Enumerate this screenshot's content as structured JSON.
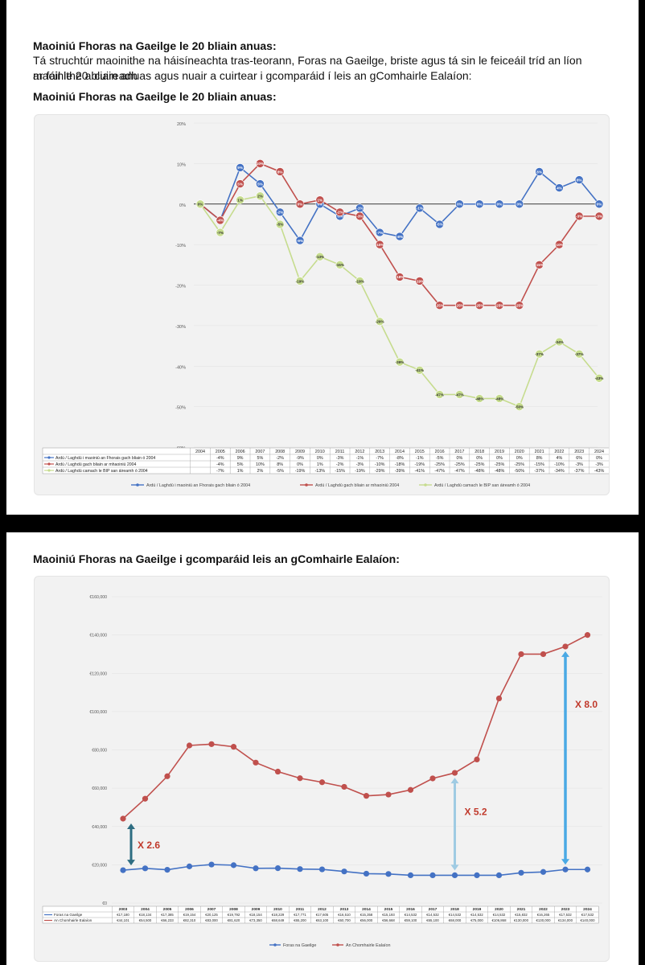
{
  "page1": {
    "heading": "Maoiniú Fhoras na Gaeilge le 20 bliain anuas:",
    "para_line1": "Tá struchtúr maoinithe na háisíneachta tras-teorann, Foras na Gaeilge, briste agus tá sin le feiceáil tríd an líon maoinithe a cuireadh",
    "para_line2": "ar fáil le 20 bliain anuas agus nuair a cuirtear i gcomparáid í leis an gComhairle Ealaíon:",
    "subheading": "Maoiniú Fhoras na Gaeilge le 20 bliain anuas:"
  },
  "page2": {
    "heading": "Maoiniú Fhoras na Gaeilge i gcomparáid leis an gComhairle Ealaíon:"
  },
  "colors": {
    "blue": "#4472c4",
    "red": "#c0504d",
    "green": "#c6dc8e",
    "arrow_dark": "#2e6d82",
    "arrow_light": "#9fcbe3",
    "arrow_bright": "#4aa9e4",
    "annot_red": "#c0392b"
  },
  "chart_data": [
    {
      "type": "line",
      "title": "",
      "ylim": [
        -60,
        20
      ],
      "y_ticks": [
        "20%",
        "10%",
        "0%",
        "-10%",
        "-20%",
        "-30%",
        "-40%",
        "-50%",
        "-60%"
      ],
      "y_tick_values": [
        20,
        10,
        0,
        -10,
        -20,
        -30,
        -40,
        -50,
        -60
      ],
      "categories": [
        "2004",
        "2005",
        "2006",
        "2007",
        "2008",
        "2009",
        "2010",
        "2011",
        "2012",
        "2013",
        "2014",
        "2015",
        "2016",
        "2017",
        "2018",
        "2019",
        "2020",
        "2021",
        "2022",
        "2023",
        "2024"
      ],
      "series": [
        {
          "name": "Ardú / Laghdú i maoiniú an Fhorais gach bliain ó 2004",
          "values": [
            0,
            -4,
            9,
            5,
            -2,
            -9,
            0,
            -3,
            -1,
            -7,
            -8,
            -1,
            -5,
            0,
            0,
            0,
            0,
            8,
            4,
            6,
            0
          ],
          "labels": [
            "0%",
            "-4%",
            "9%",
            "5%",
            "-2%",
            "-9%",
            "0%",
            "-3%",
            "-1%",
            "-7%",
            "-8%",
            "-1%",
            "-5%",
            "0%",
            "0%",
            "0%",
            "0%",
            "8%",
            "4%",
            "6%",
            "0%"
          ],
          "table_values": [
            "",
            "-4%",
            "9%",
            "5%",
            "-2%",
            "-9%",
            "0%",
            "-3%",
            "-1%",
            "-7%",
            "-8%",
            "-1%",
            "-5%",
            "0%",
            "0%",
            "0%",
            "0%",
            "8%",
            "4%",
            "6%",
            "0%"
          ]
        },
        {
          "name": "Ardú / Laghdú gach bliain ar mhaoiniú 2004",
          "values": [
            0,
            -4,
            5,
            10,
            8,
            0,
            1,
            -2,
            -3,
            -10,
            -18,
            -19,
            -25,
            -25,
            -25,
            -25,
            -25,
            -15,
            -10,
            -3,
            -3
          ],
          "labels": [
            "0%",
            "-4%",
            "5%",
            "10%",
            "8%",
            "0%",
            "1%",
            "-2%",
            "-3%",
            "-10%",
            "-18%",
            "-19%",
            "-25%",
            "-25%",
            "-25%",
            "-25%",
            "-25%",
            "-15%",
            "-10%",
            "-3%",
            "-3%"
          ],
          "table_values": [
            "",
            "-4%",
            "5%",
            "10%",
            "8%",
            "0%",
            "1%",
            "-2%",
            "-3%",
            "-10%",
            "-18%",
            "-19%",
            "-25%",
            "-25%",
            "-25%",
            "-25%",
            "-25%",
            "-15%",
            "-10%",
            "-3%",
            "-3%"
          ]
        },
        {
          "name": "Ardú / Laghdú camach le BIP san áireamh ó 2004",
          "values": [
            0,
            -7,
            1,
            2,
            -5,
            -19,
            -13,
            -15,
            -19,
            -29,
            -39,
            -41,
            -47,
            -47,
            -48,
            -48,
            -50,
            -37,
            -34,
            -37,
            -43
          ],
          "labels": [
            "0%",
            "-7%",
            "1%",
            "2%",
            "-5%",
            "-19%",
            "-13%",
            "-15%",
            "-19%",
            "-29%",
            "-39%",
            "-41%",
            "-47%",
            "-47%",
            "-48%",
            "-48%",
            "-50%",
            "-37%",
            "-34%",
            "-37%",
            "-43%"
          ],
          "table_values": [
            "",
            "-7%",
            "1%",
            "2%",
            "-5%",
            "-19%",
            "-13%",
            "-15%",
            "-19%",
            "-29%",
            "-39%",
            "-41%",
            "-47%",
            "-47%",
            "-48%",
            "-48%",
            "-50%",
            "-37%",
            "-34%",
            "-37%",
            "-43%"
          ]
        }
      ]
    },
    {
      "type": "line",
      "title": "",
      "ylim": [
        0,
        160000
      ],
      "y_ticks": [
        "€160,000",
        "€140,000",
        "€120,000",
        "€100,000",
        "€80,000",
        "€60,000",
        "€40,000",
        "€20,000",
        "€0"
      ],
      "y_tick_values": [
        160000,
        140000,
        120000,
        100000,
        80000,
        60000,
        40000,
        20000,
        0
      ],
      "categories": [
        "2003",
        "2004",
        "2005",
        "2006",
        "2007",
        "2008",
        "2009",
        "2010",
        "2011",
        "2012",
        "2013",
        "2014",
        "2015",
        "2016",
        "2017",
        "2018",
        "2019",
        "2020",
        "2021",
        "2022",
        "2023",
        "2024"
      ],
      "series": [
        {
          "name": "Foras na Gaeilge",
          "values": [
            17180,
            18134,
            17385,
            19154,
            20125,
            19792,
            18154,
            18229,
            17771,
            17605,
            16510,
            15358,
            15193,
            14532,
            14532,
            14532,
            14532,
            14532,
            15832,
            16265,
            17532,
            17532
          ],
          "table_values": [
            "€17,180",
            "€18,134",
            "€17,385",
            "€19,154",
            "€20,125",
            "€19,792",
            "€18,154",
            "€18,229",
            "€17,771",
            "€17,605",
            "€16,510",
            "€15,358",
            "€15,193",
            "€14,532",
            "€14,532",
            "€14,532",
            "€14,532",
            "€14,532",
            "€15,832",
            "€16,265",
            "€17,532",
            "€17,532"
          ]
        },
        {
          "name": "An Chomhairle Ealaíon",
          "values": [
            44101,
            54500,
            66233,
            82310,
            83000,
            81620,
            73350,
            68649,
            65200,
            63100,
            60700,
            56000,
            56668,
            59100,
            65100,
            68000,
            75000,
            106868,
            130000,
            130000,
            134000,
            140000
          ],
          "table_values": [
            "€44,101",
            "€54,500",
            "€66,233",
            "€82,310",
            "€83,000",
            "€81,620",
            "€73,350",
            "€68,649",
            "€65,200",
            "€63,100",
            "€60,700",
            "€56,000",
            "€56,668",
            "€59,100",
            "€65,100",
            "€68,000",
            "€75,000",
            "€106,868",
            "€130,000",
            "€130,000",
            "€134,000",
            "€140,000"
          ]
        }
      ],
      "annotations": [
        {
          "text": "X 2.6",
          "year": "2003"
        },
        {
          "text": "X 5.2",
          "year": "2018"
        },
        {
          "text": "X 8.0",
          "year": "2023"
        }
      ]
    }
  ]
}
